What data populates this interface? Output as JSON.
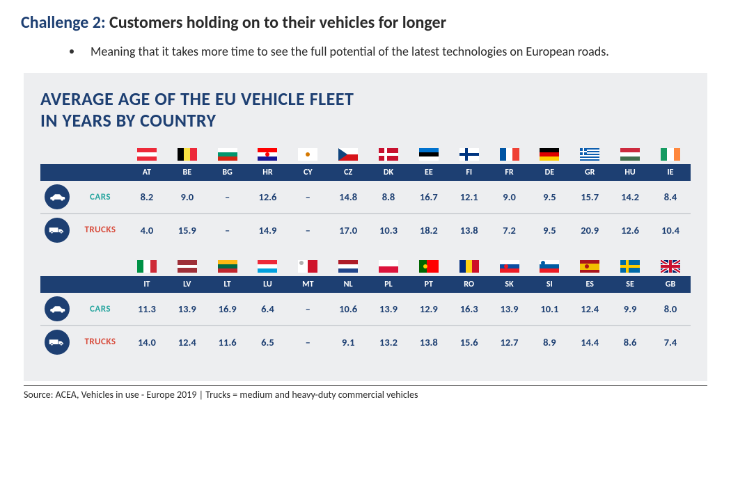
{
  "heading": {
    "prefix": "Challenge 2:",
    "text": "Customers holding on to their vehicles for longer"
  },
  "bullet": "Meaning that it takes more time to see the full potential of the latest technologies on European roads.",
  "panel": {
    "title_line1": "AVERAGE AGE OF THE EU VEHICLE FLEET",
    "title_line2": "IN YEARS BY COUNTRY",
    "background_color": "#edeef0",
    "header_bar_color": "#1d3f72",
    "title_color": "#1d3f72",
    "value_color": "#1d3f72",
    "cars_label": "CARS",
    "cars_label_color": "#2aa6a0",
    "trucks_label": "TRUCKS",
    "trucks_label_color": "#d84b3b",
    "divider_color": "#cfd2d6",
    "groups": [
      {
        "countries": [
          {
            "code": "AT",
            "name": "Austria",
            "cars": "8.2",
            "trucks": "4.0",
            "flag": {
              "type": "h3",
              "c": [
                "#ed2939",
                "#ffffff",
                "#ed2939"
              ]
            }
          },
          {
            "code": "BE",
            "name": "Belgium",
            "cars": "9.0",
            "trucks": "15.9",
            "flag": {
              "type": "v3",
              "c": [
                "#000000",
                "#fae042",
                "#ed2939"
              ]
            }
          },
          {
            "code": "BG",
            "name": "Bulgaria",
            "cars": "–",
            "trucks": "–",
            "flag": {
              "type": "h3",
              "c": [
                "#ffffff",
                "#00966e",
                "#d62612"
              ]
            }
          },
          {
            "code": "HR",
            "name": "Croatia",
            "cars": "12.6",
            "trucks": "14.9",
            "flag": {
              "type": "h3",
              "c": [
                "#ff0000",
                "#ffffff",
                "#171796"
              ],
              "emblem": "#ff0000"
            }
          },
          {
            "code": "CY",
            "name": "Cyprus",
            "cars": "–",
            "trucks": "–",
            "flag": {
              "type": "solid",
              "c": [
                "#ffffff"
              ],
              "emblem": "#d57800"
            }
          },
          {
            "code": "CZ",
            "name": "Czechia",
            "cars": "14.8",
            "trucks": "17.0",
            "flag": {
              "type": "cz"
            }
          },
          {
            "code": "DK",
            "name": "Denmark",
            "cars": "8.8",
            "trucks": "10.3",
            "flag": {
              "type": "nordic",
              "bg": "#c8102e",
              "cross": "#ffffff"
            }
          },
          {
            "code": "EE",
            "name": "Estonia",
            "cars": "16.7",
            "trucks": "18.2",
            "flag": {
              "type": "h3",
              "c": [
                "#0072ce",
                "#000000",
                "#ffffff"
              ]
            }
          },
          {
            "code": "FI",
            "name": "Finland",
            "cars": "12.1",
            "trucks": "13.8",
            "flag": {
              "type": "nordic",
              "bg": "#ffffff",
              "cross": "#003580"
            }
          },
          {
            "code": "FR",
            "name": "France",
            "cars": "9.0",
            "trucks": "7.2",
            "flag": {
              "type": "v3",
              "c": [
                "#0055a4",
                "#ffffff",
                "#ef4135"
              ]
            }
          },
          {
            "code": "DE",
            "name": "Germany",
            "cars": "9.5",
            "trucks": "9.5",
            "flag": {
              "type": "h3",
              "c": [
                "#000000",
                "#dd0000",
                "#ffce00"
              ]
            }
          },
          {
            "code": "GR",
            "name": "Greece",
            "cars": "15.7",
            "trucks": "20.9",
            "flag": {
              "type": "gr"
            }
          },
          {
            "code": "HU",
            "name": "Hungary",
            "cars": "14.2",
            "trucks": "12.6",
            "flag": {
              "type": "h3",
              "c": [
                "#cd2a3e",
                "#ffffff",
                "#436f4d"
              ]
            }
          },
          {
            "code": "IE",
            "name": "Ireland",
            "cars": "8.4",
            "trucks": "10.4",
            "flag": {
              "type": "v3",
              "c": [
                "#169b62",
                "#ffffff",
                "#ff883e"
              ]
            }
          }
        ]
      },
      {
        "countries": [
          {
            "code": "IT",
            "name": "Italy",
            "cars": "11.3",
            "trucks": "14.0",
            "flag": {
              "type": "v3",
              "c": [
                "#009246",
                "#ffffff",
                "#ce2b37"
              ]
            }
          },
          {
            "code": "LV",
            "name": "Latvia",
            "cars": "13.9",
            "trucks": "12.4",
            "flag": {
              "type": "h3w",
              "c": [
                "#9e3039",
                "#ffffff",
                "#9e3039"
              ],
              "w": [
                2,
                1,
                2
              ]
            }
          },
          {
            "code": "LT",
            "name": "Lithuania",
            "cars": "16.9",
            "trucks": "11.6",
            "flag": {
              "type": "h3",
              "c": [
                "#fdb913",
                "#006a44",
                "#c1272d"
              ]
            }
          },
          {
            "code": "LU",
            "name": "Luxembourg",
            "cars": "6.4",
            "trucks": "6.5",
            "flag": {
              "type": "h3",
              "c": [
                "#ed2939",
                "#ffffff",
                "#00a1de"
              ]
            }
          },
          {
            "code": "MT",
            "name": "Malta",
            "cars": "–",
            "trucks": "–",
            "flag": {
              "type": "v2",
              "c": [
                "#ffffff",
                "#cf142b"
              ],
              "emblem": "#b0b0b0",
              "emblem_pos": "tl"
            }
          },
          {
            "code": "NL",
            "name": "Netherlands",
            "cars": "10.6",
            "trucks": "9.1",
            "flag": {
              "type": "h3",
              "c": [
                "#ae1c28",
                "#ffffff",
                "#21468b"
              ]
            }
          },
          {
            "code": "PL",
            "name": "Poland",
            "cars": "13.9",
            "trucks": "13.2",
            "flag": {
              "type": "h2",
              "c": [
                "#ffffff",
                "#dc143c"
              ]
            }
          },
          {
            "code": "PT",
            "name": "Portugal",
            "cars": "12.9",
            "trucks": "13.8",
            "flag": {
              "type": "v2w",
              "c": [
                "#006600",
                "#ff0000"
              ],
              "w": [
                2,
                3
              ],
              "emblem": "#ffcc00",
              "emblem_pos": "cl"
            }
          },
          {
            "code": "RO",
            "name": "Romania",
            "cars": "16.3",
            "trucks": "15.6",
            "flag": {
              "type": "v3",
              "c": [
                "#002b7f",
                "#fcd116",
                "#ce1126"
              ]
            }
          },
          {
            "code": "SK",
            "name": "Slovakia",
            "cars": "13.9",
            "trucks": "12.7",
            "flag": {
              "type": "h3",
              "c": [
                "#ffffff",
                "#0b4ea2",
                "#ee1c25"
              ],
              "emblem": "#ee1c25",
              "emblem_pos": "cl"
            }
          },
          {
            "code": "SI",
            "name": "Slovenia",
            "cars": "10.1",
            "trucks": "8.9",
            "flag": {
              "type": "h3",
              "c": [
                "#ffffff",
                "#005da4",
                "#ed1c24"
              ],
              "emblem": "#005da4",
              "emblem_pos": "tl"
            }
          },
          {
            "code": "ES",
            "name": "Spain",
            "cars": "12.4",
            "trucks": "14.4",
            "flag": {
              "type": "h3w",
              "c": [
                "#aa151b",
                "#f1bf00",
                "#aa151b"
              ],
              "w": [
                1,
                2,
                1
              ],
              "emblem": "#ad1519",
              "emblem_pos": "cl"
            }
          },
          {
            "code": "SE",
            "name": "Sweden",
            "cars": "9.9",
            "trucks": "8.6",
            "flag": {
              "type": "nordic",
              "bg": "#006aa7",
              "cross": "#fecc00"
            }
          },
          {
            "code": "GB",
            "name": "United Kingdom",
            "cars": "8.0",
            "trucks": "7.4",
            "flag": {
              "type": "gb"
            }
          }
        ]
      }
    ]
  },
  "source": "Source: ACEA, Vehicles in use - Europe 2019 | Trucks = medium and heavy-duty commercial vehicles"
}
